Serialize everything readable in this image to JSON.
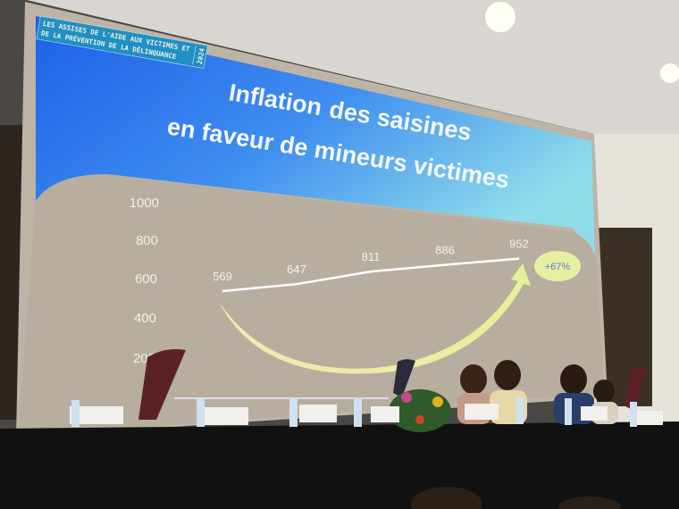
{
  "slide": {
    "banner_line1": "LES ASSISES DE L'AIDE AUX VICTIMES ET",
    "banner_line2": "DE LA PRÉVENTION DE LA DÉLINQUANCE",
    "banner_year": "2024",
    "title_line1a": "Inflation",
    "title_line1b": "des saisines",
    "title_line2": "en faveur de mineurs victimes",
    "growth_badge": "+67%"
  },
  "chart_data": {
    "type": "line",
    "title": "Inflation des saisines en faveur de mineurs victimes",
    "y_ticks": [
      "1000",
      "800",
      "600",
      "400",
      "200"
    ],
    "ylim": [
      200,
      1000
    ],
    "values": [
      569,
      647,
      811,
      886,
      952
    ],
    "value_labels": [
      "569",
      "647",
      "811",
      "886",
      "952"
    ],
    "annotation": "+67%",
    "grid": false,
    "colors": {
      "line": "#ffffff",
      "arrow": "#eef0a0",
      "badge": "#e8efa0",
      "badge_text": "#5a7ad8"
    }
  },
  "colors": {
    "slide_top": "#1e63e6",
    "slide_mid": "#7ec8f0",
    "slide_body": "#b9b0a2",
    "table": "#111111"
  }
}
